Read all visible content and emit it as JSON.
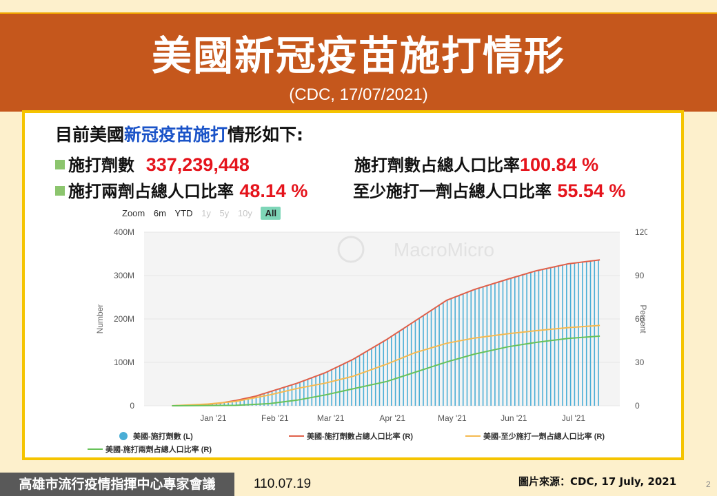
{
  "slide": {
    "title": "美國新冠疫苗施打情形",
    "subtitle": "(CDC, 17/07/2021)",
    "intro_pre": "目前美國",
    "intro_highlight": "新冠疫苗施打",
    "intro_post": "情形如下:",
    "stats": [
      {
        "label": "施打劑數",
        "value": "337,239,448"
      },
      {
        "label": "施打劑數占總人口比率",
        "value": "100.84 %"
      },
      {
        "label": "施打兩劑占總人口比率",
        "value": "48.14 %"
      },
      {
        "label": "至少施打一劑占總人口比率",
        "value": "55.54 %"
      }
    ],
    "footer_org": "高雄市流行疫情指揮中心專家會議",
    "footer_date": "110.07.19",
    "footer_source": "圖片來源：CDC, 17 July, 2021",
    "page_number": "2"
  },
  "zoom": {
    "label": "Zoom",
    "buttons": [
      {
        "label": "6m",
        "state": "normal"
      },
      {
        "label": "YTD",
        "state": "normal"
      },
      {
        "label": "1y",
        "state": "disabled"
      },
      {
        "label": "5y",
        "state": "disabled"
      },
      {
        "label": "10y",
        "state": "disabled"
      },
      {
        "label": "All",
        "state": "active"
      }
    ]
  },
  "chart_data": {
    "type": "bar",
    "watermark": "MacroMicro",
    "ylabel_left": "Number",
    "ylabel_right": "Percent",
    "ylim_left": [
      0,
      400000000
    ],
    "ylim_right": [
      0,
      120
    ],
    "yticks_left": [
      "0",
      "100M",
      "200M",
      "300M",
      "400M"
    ],
    "yticks_right": [
      "0",
      "30",
      "60",
      "90",
      "120"
    ],
    "xticks": [
      "Jan '21",
      "Feb '21",
      "Mar '21",
      "Apr '21",
      "May '21",
      "Jun '21",
      "Jul '21"
    ],
    "colors": {
      "doses": "#4aaed6",
      "doses_pct": "#e0604a",
      "one_dose": "#f5b94f",
      "two_dose": "#67c25a",
      "grid": "#e6e6e6"
    },
    "legend_position": "bottom",
    "series": [
      {
        "name": "美國-施打劑數 (L)",
        "axis": "left",
        "kind": "bar",
        "color": "#4aaed6",
        "points": [
          [
            "2020-12-14",
            0
          ],
          [
            "2020-12-28",
            2000000
          ],
          [
            "2021-01-07",
            6000000
          ],
          [
            "2021-01-15",
            12000000
          ],
          [
            "2021-01-25",
            22000000
          ],
          [
            "2021-02-01",
            32000000
          ],
          [
            "2021-02-15",
            52000000
          ],
          [
            "2021-03-01",
            76000000
          ],
          [
            "2021-03-15",
            107000000
          ],
          [
            "2021-04-01",
            153000000
          ],
          [
            "2021-04-15",
            195000000
          ],
          [
            "2021-05-01",
            243000000
          ],
          [
            "2021-05-15",
            268000000
          ],
          [
            "2021-06-01",
            292000000
          ],
          [
            "2021-06-15",
            311000000
          ],
          [
            "2021-07-01",
            327000000
          ],
          [
            "2021-07-17",
            337239448
          ]
        ]
      },
      {
        "name": "美國-施打劑數占總人口比率 (R)",
        "axis": "right",
        "kind": "line",
        "color": "#e0604a",
        "points": [
          [
            "2020-12-14",
            0
          ],
          [
            "2020-12-28",
            0.6
          ],
          [
            "2021-01-07",
            1.8
          ],
          [
            "2021-01-15",
            3.6
          ],
          [
            "2021-01-25",
            6.6
          ],
          [
            "2021-02-01",
            9.6
          ],
          [
            "2021-02-15",
            15.6
          ],
          [
            "2021-03-01",
            22.8
          ],
          [
            "2021-03-15",
            32.1
          ],
          [
            "2021-04-01",
            45.9
          ],
          [
            "2021-04-15",
            58.5
          ],
          [
            "2021-05-01",
            72.9
          ],
          [
            "2021-05-15",
            80.4
          ],
          [
            "2021-06-01",
            87.6
          ],
          [
            "2021-06-15",
            93.3
          ],
          [
            "2021-07-01",
            98.1
          ],
          [
            "2021-07-17",
            100.84
          ]
        ]
      },
      {
        "name": "美國-至少施打一劑占總人口比率 (R)",
        "axis": "right",
        "kind": "line",
        "color": "#f5b94f",
        "points": [
          [
            "2020-12-14",
            0
          ],
          [
            "2021-01-01",
            1.2
          ],
          [
            "2021-01-15",
            3.0
          ],
          [
            "2021-02-01",
            7.5
          ],
          [
            "2021-02-15",
            12.0
          ],
          [
            "2021-03-01",
            15.6
          ],
          [
            "2021-03-15",
            20.4
          ],
          [
            "2021-04-01",
            28.8
          ],
          [
            "2021-04-15",
            36.6
          ],
          [
            "2021-05-01",
            43.2
          ],
          [
            "2021-05-15",
            46.8
          ],
          [
            "2021-06-01",
            49.8
          ],
          [
            "2021-06-15",
            51.9
          ],
          [
            "2021-07-01",
            54.0
          ],
          [
            "2021-07-17",
            55.54
          ]
        ]
      },
      {
        "name": "美國-施打兩劑占總人口比率 (R)",
        "axis": "right",
        "kind": "line",
        "color": "#67c25a",
        "points": [
          [
            "2020-12-14",
            0
          ],
          [
            "2021-01-15",
            0.3
          ],
          [
            "2021-02-01",
            1.5
          ],
          [
            "2021-02-15",
            3.9
          ],
          [
            "2021-03-01",
            7.5
          ],
          [
            "2021-03-15",
            11.7
          ],
          [
            "2021-04-01",
            16.8
          ],
          [
            "2021-04-15",
            23.1
          ],
          [
            "2021-05-01",
            30.3
          ],
          [
            "2021-05-15",
            35.7
          ],
          [
            "2021-06-01",
            40.8
          ],
          [
            "2021-06-15",
            43.8
          ],
          [
            "2021-07-01",
            46.5
          ],
          [
            "2021-07-17",
            48.14
          ]
        ]
      }
    ]
  }
}
